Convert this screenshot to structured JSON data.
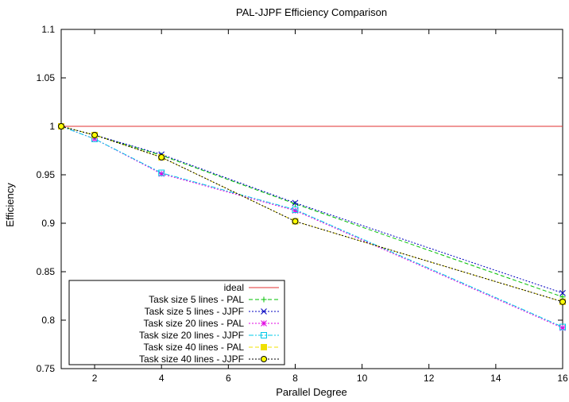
{
  "chart_data": {
    "type": "line",
    "title": "PAL-JJPF Efficiency Comparison",
    "xlabel": "Parallel Degree",
    "ylabel": "Efficiency",
    "xlim": [
      1,
      16
    ],
    "ylim": [
      0.75,
      1.1
    ],
    "xticks": [
      2,
      4,
      6,
      8,
      10,
      12,
      14,
      16
    ],
    "yticks": [
      0.75,
      0.8,
      0.85,
      0.9,
      0.95,
      1,
      1.05,
      1.1
    ],
    "ytick_labels": [
      "0.75",
      "0.8",
      "0.85",
      "0.9",
      "0.95",
      "1",
      "1.05",
      "1.1"
    ],
    "grid": false,
    "legend_position": "bottom-left",
    "series": [
      {
        "name": "ideal",
        "color": "#e03030",
        "dash": "solid",
        "marker": "none",
        "x": [
          1,
          16
        ],
        "y": [
          1.0,
          1.0
        ]
      },
      {
        "name": "Task size 5 lines - PAL",
        "color": "#00c000",
        "dash": "dashed",
        "marker": "plus",
        "x": [
          1,
          2,
          4,
          8,
          16
        ],
        "y": [
          1.0,
          0.991,
          0.97,
          0.92,
          0.824
        ]
      },
      {
        "name": "Task size 5 lines - JJPF",
        "color": "#0000c0",
        "dash": "dotted",
        "marker": "cross",
        "x": [
          1,
          2,
          4,
          8,
          16
        ],
        "y": [
          1.0,
          0.991,
          0.971,
          0.921,
          0.828
        ]
      },
      {
        "name": "Task size 20 lines - PAL",
        "color": "#e000e0",
        "dash": "dotted",
        "marker": "star",
        "x": [
          1,
          2,
          4,
          8,
          16
        ],
        "y": [
          1.0,
          0.987,
          0.951,
          0.913,
          0.792
        ]
      },
      {
        "name": "Task size 20 lines - JJPF",
        "color": "#00c8e8",
        "dash": "dashdot",
        "marker": "square-open",
        "x": [
          1,
          2,
          4,
          8,
          16
        ],
        "y": [
          1.0,
          0.987,
          0.952,
          0.914,
          0.793
        ]
      },
      {
        "name": "Task size 40 lines - PAL",
        "color": "#f0e000",
        "dash": "dashed",
        "marker": "square-filled",
        "x": [
          1,
          2,
          4,
          8,
          16
        ],
        "y": [
          1.0,
          0.991,
          0.968,
          0.902,
          0.819
        ]
      },
      {
        "name": "Task size 40 lines - JJPF",
        "color": "#000000",
        "dash": "dotted",
        "marker": "circle-open",
        "x": [
          1,
          2,
          4,
          8,
          16
        ],
        "y": [
          1.0,
          0.991,
          0.968,
          0.902,
          0.819
        ]
      }
    ]
  }
}
